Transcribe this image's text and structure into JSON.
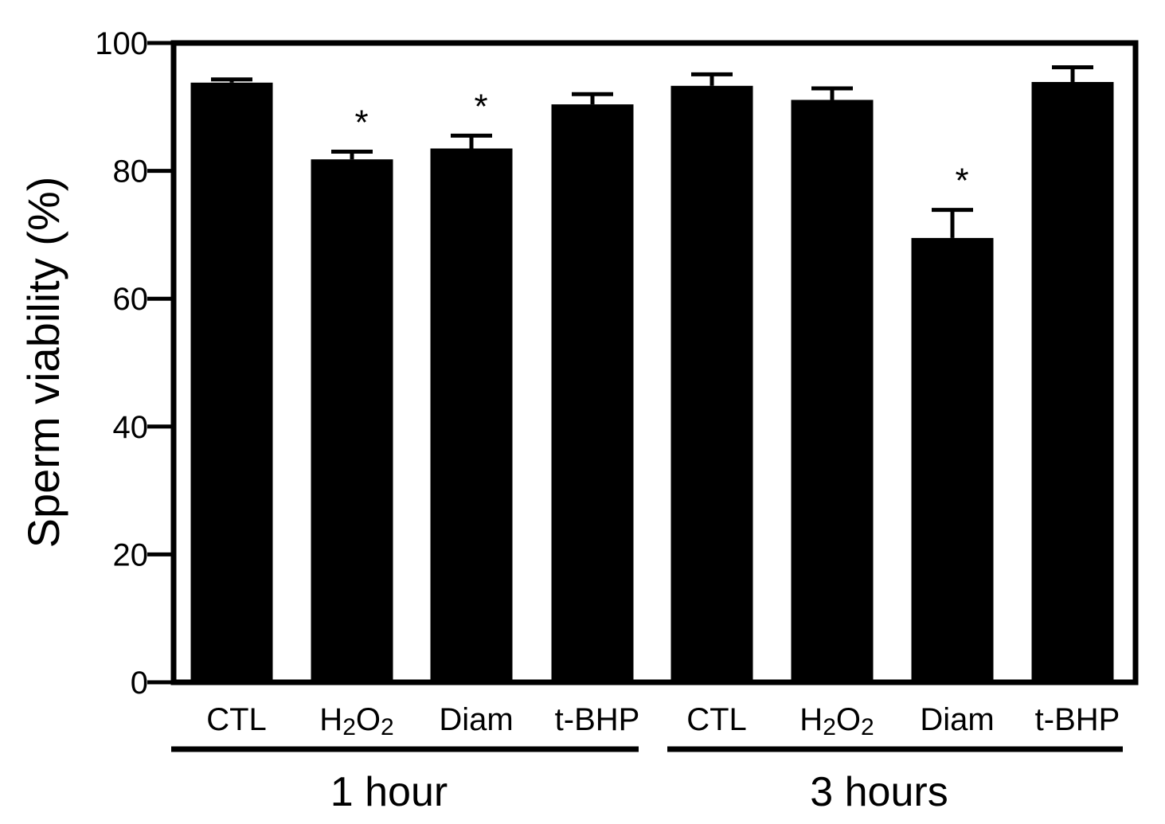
{
  "chart_data": {
    "type": "bar",
    "title": "",
    "xlabel": "",
    "ylabel": "Sperm viability (%)",
    "ylim": [
      0,
      100
    ],
    "yticks": [
      0,
      20,
      40,
      60,
      80,
      100
    ],
    "grid": false,
    "bars": [
      {
        "label": "CTL",
        "sub": "",
        "group": "1 hour",
        "value": 93.8,
        "error": 0.5,
        "sig": false
      },
      {
        "label": "H",
        "sub": "2",
        "label2": "O",
        "sub2": "2",
        "group": "1 hour",
        "value": 81.8,
        "error": 1.2,
        "sig": true
      },
      {
        "label": "Diam",
        "sub": "",
        "group": "1 hour",
        "value": 83.5,
        "error": 2.0,
        "sig": true
      },
      {
        "label": "t-BHP",
        "sub": "",
        "group": "1 hour",
        "value": 90.4,
        "error": 1.6,
        "sig": false
      },
      {
        "label": "CTL",
        "sub": "",
        "group": "3 hours",
        "value": 93.3,
        "error": 1.8,
        "sig": false
      },
      {
        "label": "H",
        "sub": "2",
        "label2": "O",
        "sub2": "2",
        "group": "3 hours",
        "value": 91.1,
        "error": 1.8,
        "sig": false
      },
      {
        "label": "Diam",
        "sub": "",
        "group": "3 hours",
        "value": 69.5,
        "error": 4.4,
        "sig": true
      },
      {
        "label": "t-BHP",
        "sub": "",
        "group": "3 hours",
        "value": 93.9,
        "error": 2.3,
        "sig": false
      }
    ],
    "groups": [
      "1 hour",
      "3 hours"
    ],
    "significance_marker": "*",
    "bar_color": "#000000"
  }
}
